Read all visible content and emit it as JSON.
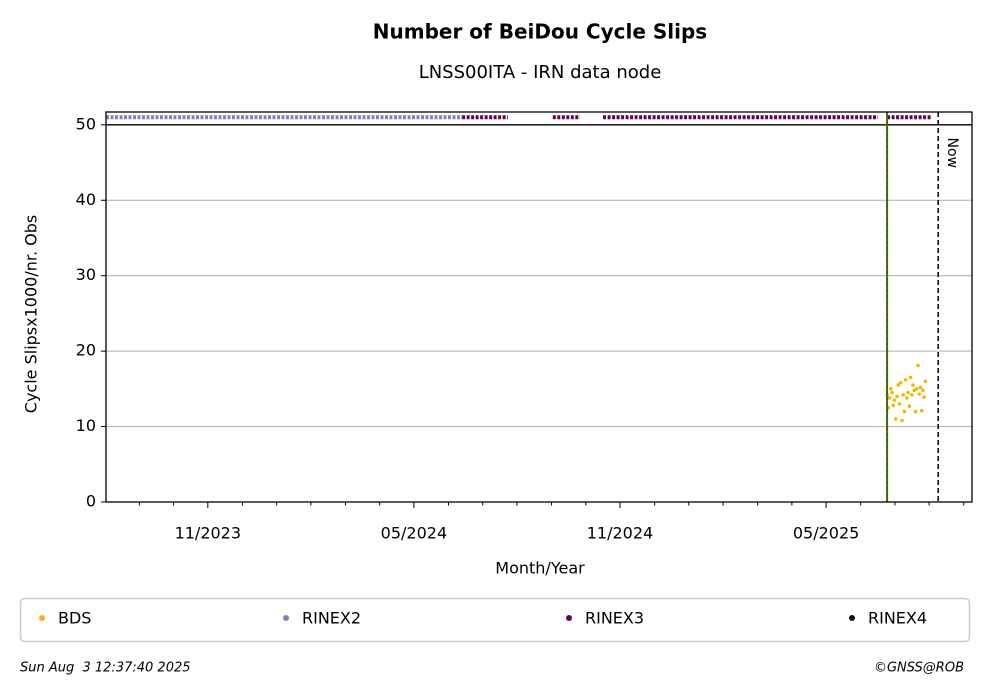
{
  "chart_data": {
    "type": "scatter",
    "title": "Number of BeiDou Cycle Slips",
    "subtitle": "LNSS00ITA - IRN data node",
    "xlabel": "Month/Year",
    "ylabel": "Cycle Slipsx1000/nr. Obs",
    "xlim": [
      2023.586,
      2025.687
    ],
    "xticks": [
      {
        "value": 2023.833,
        "label": "11/2023"
      },
      {
        "value": 2024.333,
        "label": "05/2024"
      },
      {
        "value": 2024.833,
        "label": "11/2024"
      },
      {
        "value": 2025.333,
        "label": "05/2025"
      }
    ],
    "xminorticks": [
      2023.667,
      2023.75,
      2023.917,
      2024.0,
      2024.083,
      2024.167,
      2024.25,
      2024.417,
      2024.5,
      2024.583,
      2024.667,
      2024.75,
      2024.917,
      2025.0,
      2025.083,
      2025.167,
      2025.25,
      2025.417,
      2025.5,
      2025.583,
      2025.667
    ],
    "ylim": [
      0,
      51.7
    ],
    "yticks": [
      0,
      10,
      20,
      30,
      40,
      50
    ],
    "grid": true,
    "hline": 50,
    "vlines": [
      {
        "x": 2025.481,
        "colors": [
          "#008000",
          "#d62728"
        ]
      },
      {
        "x": 2025.605,
        "color": "#000000",
        "label": "Now"
      }
    ],
    "series": [
      {
        "name": "BDS",
        "color": "#f5b800",
        "style": "dots",
        "x": [
          2025.481,
          2025.484,
          2025.487,
          2025.49,
          2025.493,
          2025.496,
          2025.499,
          2025.502,
          2025.505,
          2025.508,
          2025.511,
          2025.514,
          2025.517,
          2025.52,
          2025.523,
          2025.526,
          2025.529,
          2025.532,
          2025.535,
          2025.538,
          2025.541,
          2025.544,
          2025.547,
          2025.55,
          2025.553,
          2025.556,
          2025.559,
          2025.562,
          2025.565,
          2025.568,
          2025.571,
          2025.574
        ],
        "values": [
          14.2,
          12.5,
          13.8,
          15.0,
          14.5,
          12.8,
          13.5,
          11.0,
          14.0,
          15.5,
          13.0,
          15.8,
          10.8,
          14.2,
          12.0,
          16.2,
          13.8,
          14.5,
          12.7,
          16.5,
          14.2,
          15.5,
          14.8,
          12.0,
          15.0,
          18.1,
          14.3,
          15.2,
          12.1,
          14.8,
          13.9,
          16.0
        ]
      },
      {
        "name": "RINEX2",
        "color": "#8080c0",
        "style": "band",
        "x": [
          2023.586,
          2024.45
        ],
        "values": [
          51,
          51
        ]
      },
      {
        "name": "RINEX3",
        "color": "#660055",
        "style": "band",
        "x": [
          2024.45,
          2024.561,
          2024.6,
          2024.67,
          2024.736,
          2024.76,
          2024.792,
          2025.459,
          2025.47,
          2025.481,
          2025.59
        ],
        "values": [
          51,
          51,
          null,
          51,
          51,
          null,
          51,
          51,
          null,
          51,
          51
        ]
      },
      {
        "name": "RINEX4",
        "color": "#1a0018",
        "style": "band",
        "x": [],
        "values": []
      }
    ],
    "footer_left": "Sun Aug  3 12:37:40 2025",
    "footer_right": "©GNSS@ROB"
  }
}
